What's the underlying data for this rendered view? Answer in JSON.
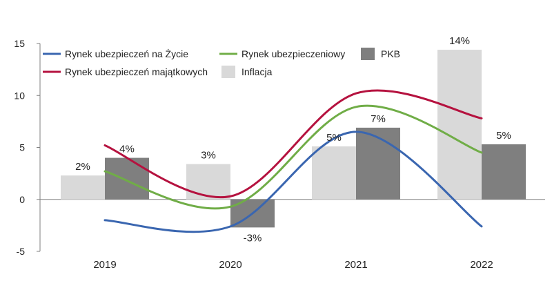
{
  "chart_data": {
    "type": "bar",
    "categories": [
      "2019",
      "2020",
      "2021",
      "2022"
    ],
    "ylim": [
      -5,
      15
    ],
    "yticks": [
      "15",
      "10",
      "5",
      "0",
      "-5"
    ],
    "ytick_values": [
      15,
      10,
      5,
      0,
      -5
    ],
    "bar_series": [
      {
        "name": "Inflacja",
        "color": "#d9d9d9",
        "values": [
          2.3,
          3.4,
          5.1,
          14.4
        ],
        "labels": [
          "2%",
          "3%",
          "5%",
          "14%"
        ]
      },
      {
        "name": "PKB",
        "color": "#7f7f7f",
        "values": [
          4.0,
          -2.7,
          6.9,
          5.3
        ],
        "labels": [
          "4%",
          "-3%",
          "7%",
          "5%"
        ]
      }
    ],
    "line_series": [
      {
        "name": "Rynek ubezpieczeń na Życie",
        "color": "#3a66b0",
        "values": [
          -2.0,
          -2.6,
          6.5,
          -2.6
        ]
      },
      {
        "name": "Rynek ubezpieczeń majątkowych",
        "color": "#b5123f",
        "values": [
          5.2,
          0.3,
          10.2,
          7.8
        ]
      },
      {
        "name": "Rynek ubezpieczeniowy",
        "color": "#70ad47",
        "values": [
          2.7,
          -0.7,
          8.9,
          4.5
        ]
      }
    ],
    "legend": {
      "placement": "top",
      "items": [
        "Rynek ubezpieczeń na Życie",
        "Rynek ubezpieczeniowy",
        "PKB",
        "Rynek ubezpieczeń majątkowych",
        "Inflacja"
      ]
    },
    "grid": false
  }
}
